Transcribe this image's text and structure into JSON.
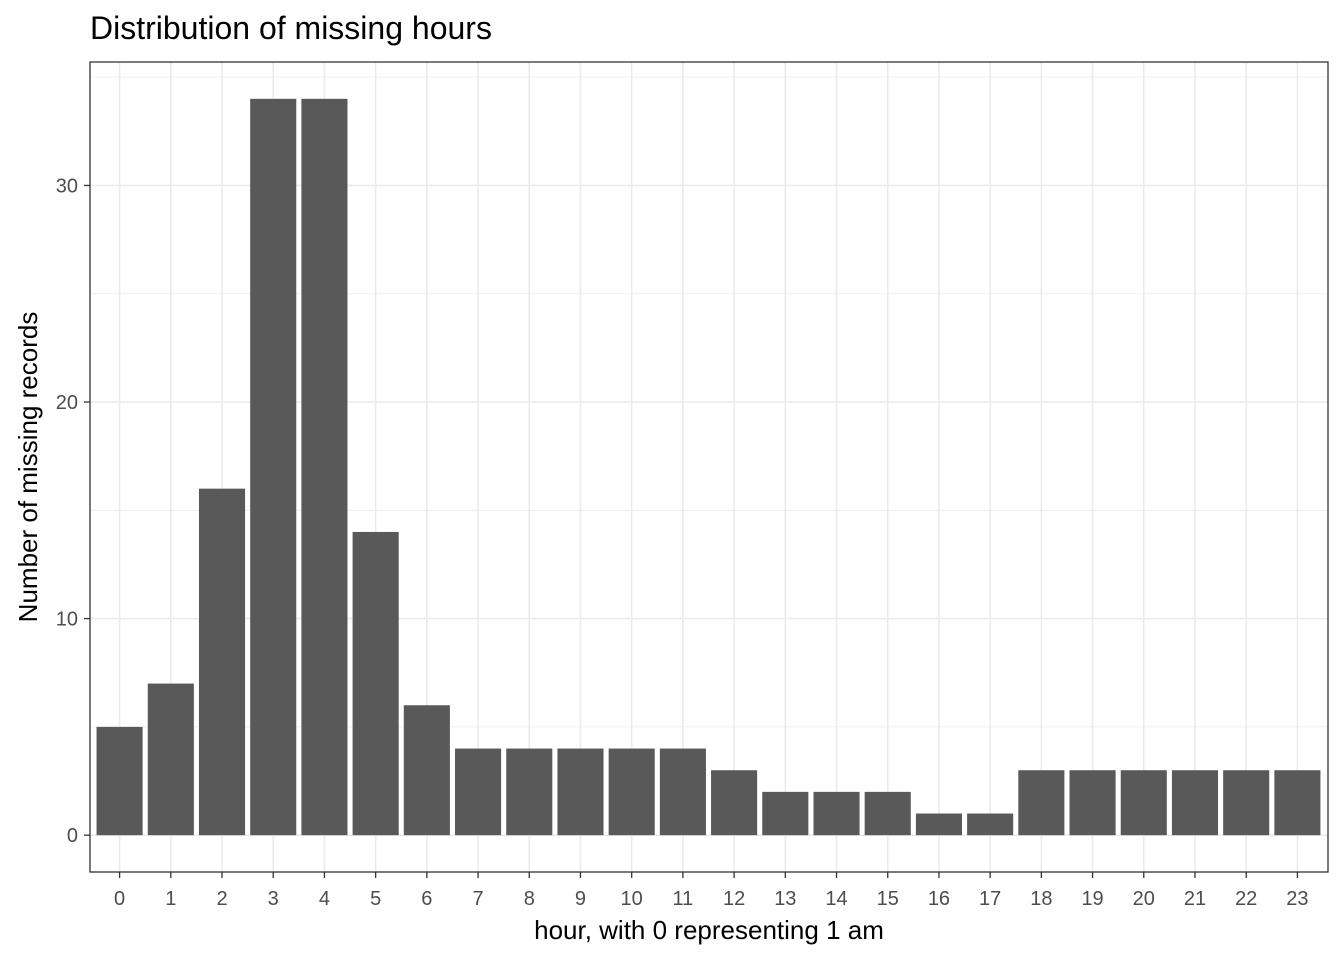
{
  "chart_data": {
    "type": "bar",
    "title": "Distribution of missing hours",
    "xlabel": "hour, with 0 representing 1 am",
    "ylabel": "Number of missing records",
    "categories": [
      "0",
      "1",
      "2",
      "3",
      "4",
      "5",
      "6",
      "7",
      "8",
      "9",
      "10",
      "11",
      "12",
      "13",
      "14",
      "15",
      "16",
      "17",
      "18",
      "19",
      "20",
      "21",
      "22",
      "23"
    ],
    "values": [
      5,
      7,
      16,
      34,
      34,
      14,
      6,
      4,
      4,
      4,
      4,
      4,
      3,
      2,
      2,
      2,
      1,
      1,
      3,
      3,
      3,
      3,
      3,
      3
    ],
    "yticks": [
      0,
      10,
      20,
      30
    ],
    "ytick_labels": [
      "0",
      "10",
      "20",
      "30"
    ],
    "ylim": [
      -1.7,
      35.7
    ],
    "grid": true,
    "bar_color": "#595959",
    "grid_color": "#ebebeb"
  }
}
